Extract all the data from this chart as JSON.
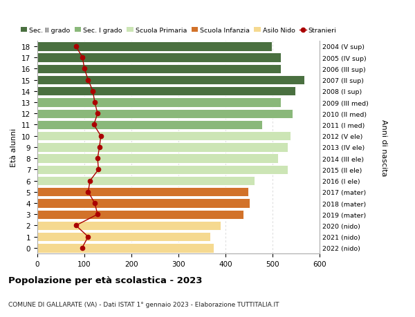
{
  "ages": [
    0,
    1,
    2,
    3,
    4,
    5,
    6,
    7,
    8,
    9,
    10,
    11,
    12,
    13,
    14,
    15,
    16,
    17,
    18
  ],
  "years": [
    "2022 (nido)",
    "2021 (nido)",
    "2020 (nido)",
    "2019 (mater)",
    "2018 (mater)",
    "2017 (mater)",
    "2016 (I ele)",
    "2015 (II ele)",
    "2014 (III ele)",
    "2013 (IV ele)",
    "2012 (V ele)",
    "2011 (I med)",
    "2010 (II med)",
    "2009 (III med)",
    "2008 (I sup)",
    "2007 (II sup)",
    "2006 (III sup)",
    "2005 (IV sup)",
    "2004 (V sup)"
  ],
  "bar_values": [
    375,
    368,
    390,
    438,
    452,
    448,
    462,
    532,
    512,
    532,
    538,
    478,
    542,
    518,
    548,
    568,
    518,
    518,
    498
  ],
  "stranieri": [
    95,
    108,
    82,
    128,
    122,
    108,
    112,
    130,
    128,
    132,
    135,
    120,
    128,
    122,
    118,
    108,
    100,
    96,
    82
  ],
  "bar_colors_by_age": {
    "0": "#f5d990",
    "1": "#f5d990",
    "2": "#f5d990",
    "3": "#d2722a",
    "4": "#d2722a",
    "5": "#d2722a",
    "6": "#cce5b5",
    "7": "#cce5b5",
    "8": "#cce5b5",
    "9": "#cce5b5",
    "10": "#cce5b5",
    "11": "#8ab87a",
    "12": "#8ab87a",
    "13": "#8ab87a",
    "14": "#4a7040",
    "15": "#4a7040",
    "16": "#4a7040",
    "17": "#4a7040",
    "18": "#4a7040"
  },
  "title": "Popolazione per età scolastica - 2023",
  "subtitle": "COMUNE DI GALLARATE (VA) - Dati ISTAT 1° gennaio 2023 - Elaborazione TUTTITALIA.IT",
  "ylabel_left": "Età alunni",
  "ylabel_right": "Anni di nascita",
  "xlim": [
    0,
    600
  ],
  "ylim": [
    -0.5,
    18.5
  ],
  "legend_labels": [
    "Sec. II grado",
    "Sec. I grado",
    "Scuola Primaria",
    "Scuola Infanzia",
    "Asilo Nido",
    "Stranieri"
  ],
  "legend_colors": [
    "#4a7040",
    "#8ab87a",
    "#cce5b5",
    "#d2722a",
    "#f5d990",
    "#cc0000"
  ],
  "stranieri_color": "#aa0000",
  "grid_color": "#cccccc"
}
